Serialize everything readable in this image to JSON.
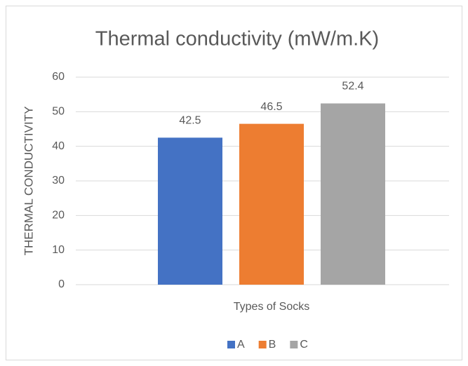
{
  "chart_data": {
    "type": "bar",
    "title": "Thermal conductivity (mW/m.K)",
    "y_label": "THERMAL CONDUCTIVITY",
    "categories": [
      "Types of Socks"
    ],
    "series": [
      {
        "name": "A",
        "color": "#4472c4",
        "values": [
          42.5
        ]
      },
      {
        "name": "B",
        "color": "#ed7d31",
        "values": [
          46.5
        ]
      },
      {
        "name": "C",
        "color": "#a5a5a5",
        "values": [
          52.4
        ]
      }
    ],
    "ylim": [
      0,
      60
    ],
    "yticks": [
      0,
      10,
      20,
      30,
      40,
      50,
      60
    ],
    "grid": true,
    "legend": "bottom"
  }
}
